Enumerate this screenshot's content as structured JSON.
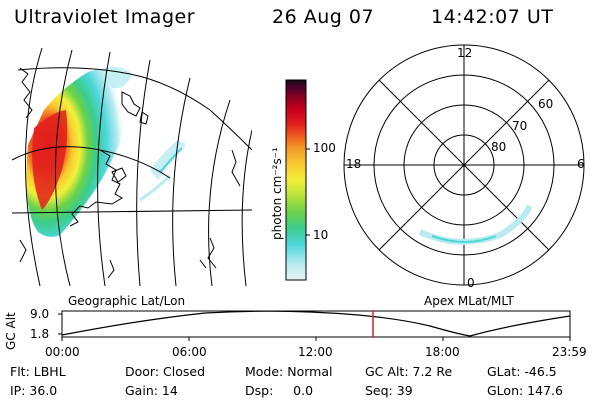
{
  "header": {
    "instrument": "Ultraviolet Imager",
    "date": "26 Aug 07",
    "time": "14:42:07 UT"
  },
  "geo_panel": {
    "label": "Geographic Lat/Lon"
  },
  "colorbar": {
    "unit_label": "photon cm⁻²s⁻¹",
    "ticks": [
      "100",
      "10"
    ],
    "colors": [
      "#e8f4f6",
      "#b8ecf0",
      "#4cd6da",
      "#3ccc8a",
      "#6cd24a",
      "#b6e23c",
      "#f2f03a",
      "#f8c830",
      "#f49a28",
      "#ee5a1e",
      "#e01e1c",
      "#c8001e",
      "#900020",
      "#50002a",
      "#140c18"
    ]
  },
  "polar_panel": {
    "label": "Apex MLat/MLT",
    "mlt_labels": [
      "12",
      "18",
      "6",
      "0"
    ],
    "lat_labels": [
      "60",
      "70",
      "80"
    ]
  },
  "timeline": {
    "axis_title": "GC Alt",
    "y_ticks": [
      "9.0",
      "1.8"
    ],
    "x_ticks": [
      "00:00",
      "06:00",
      "12:00",
      "18:00",
      "23:59"
    ],
    "marker_color": "#e01e1c"
  },
  "status": {
    "filter": "Flt: LBHL",
    "ip": "IP: 36.0",
    "door": "Door: Closed",
    "gain": "Gain: 14",
    "mode": "Mode: Normal",
    "dsp": "Dsp:     0.0",
    "gc_alt": "GC Alt: 7.2 Re",
    "seq": "Seq: 39",
    "glat": "GLat: -46.5",
    "glon": "GLon: 147.6"
  }
}
